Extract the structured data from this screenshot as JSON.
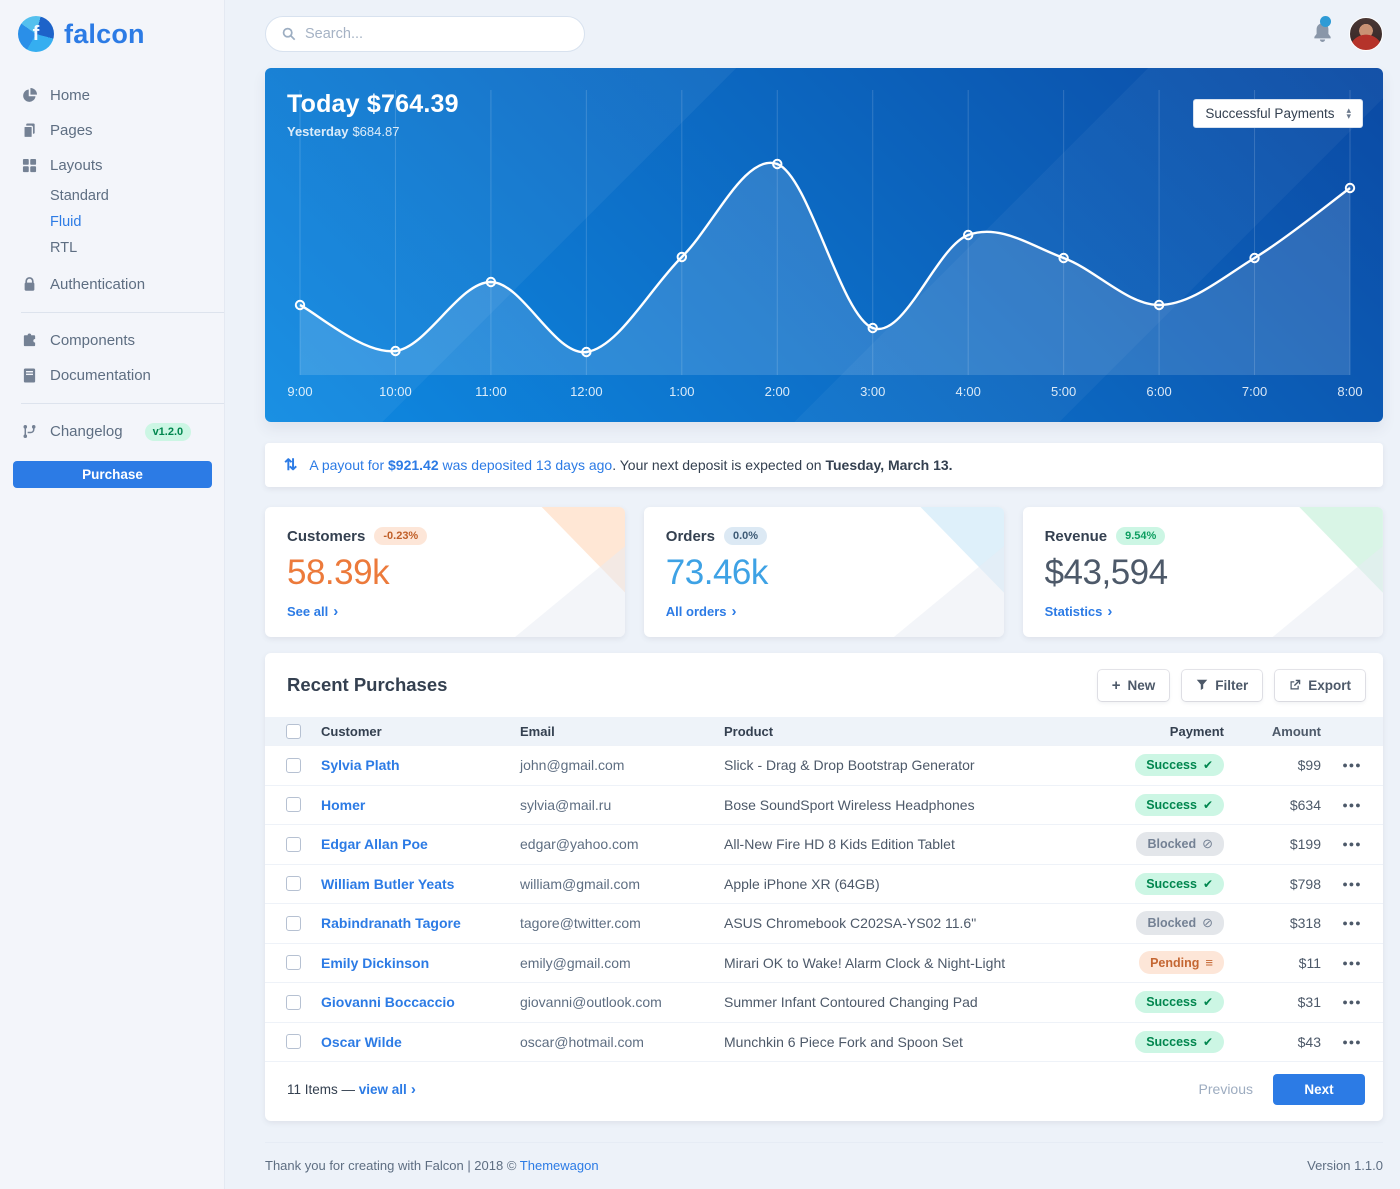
{
  "colors": {
    "page_bg": "#edf2f9",
    "accent": "#2c7be5",
    "chart_grad_start": "#0e8ae2",
    "chart_grad_end": "#0b4aa4",
    "success_bg": "#ccf6e4",
    "success_text": "#00864e",
    "blocked_bg": "#e3e6ea",
    "blocked_text": "#748194",
    "pending_bg": "#fde6d8",
    "pending_text": "#c46632",
    "customers": "#ec7a3b",
    "orders": "#3ea2e5",
    "revenue": "#4d5969"
  },
  "sidebar": {
    "logo_text": "falcon",
    "logo_letter": "f",
    "items": [
      {
        "label": "Home",
        "icon": "pie-chart-icon"
      },
      {
        "label": "Pages",
        "icon": "pages-icon"
      },
      {
        "label": "Layouts",
        "icon": "grid-icon"
      },
      {
        "label": "Standard"
      },
      {
        "label": "Fluid",
        "active": true
      },
      {
        "label": "RTL"
      },
      {
        "label": "Authentication",
        "icon": "lock-icon"
      },
      {
        "label": "Components",
        "icon": "puzzle-icon"
      },
      {
        "label": "Documentation",
        "icon": "book-icon"
      },
      {
        "label": "Changelog",
        "icon": "code-branch-icon",
        "badge": "v1.2.0"
      }
    ],
    "purchase_label": "Purchase"
  },
  "header": {
    "search_placeholder": "Search...",
    "bell_icon": "bell-icon",
    "avatar": "user-avatar"
  },
  "chart_card": {
    "title": "Today $764.39",
    "subtitle_label": "Yesterday",
    "subtitle_value": "$684.87",
    "dropdown_value": "Successful Payments"
  },
  "chart_data": {
    "type": "line",
    "title": "Successful Payments (Today $764.39 / Yesterday $684.87)",
    "x": [
      "9:00",
      "10:00",
      "11:00",
      "12:00",
      "1:00",
      "2:00",
      "3:00",
      "4:00",
      "5:00",
      "6:00",
      "7:00",
      "8:00"
    ],
    "series": [
      {
        "name": "Successful Payments",
        "values": [
          70,
          24,
          93,
          23,
          118,
          211,
          47,
          140,
          117,
          70,
          117,
          187
        ]
      }
    ],
    "ylim": [
      0,
      250
    ],
    "grid": "vertical",
    "legend": "none",
    "marker": "open-circle",
    "area_fill": true
  },
  "notification": {
    "icon": "exchange-arrows-icon",
    "link_prefix": "A payout for ",
    "link_amount": "$921.42",
    "link_suffix": " was deposited 13 days ago",
    "mid_text": ". Your next deposit is expected on ",
    "bold_text": "Tuesday, March 13."
  },
  "stats": [
    {
      "title": "Customers",
      "badge": "-0.23%",
      "value": "58.39k",
      "link": "See all",
      "theme": "warning"
    },
    {
      "title": "Orders",
      "badge": "0.0%",
      "value": "73.46k",
      "link": "All orders",
      "theme": "info"
    },
    {
      "title": "Revenue",
      "badge": "9.54%",
      "value": "$43,594",
      "link": "Statistics",
      "theme": "success"
    }
  ],
  "purchases": {
    "title": "Recent Purchases",
    "buttons": {
      "new": "New",
      "filter": "Filter",
      "export": "Export"
    },
    "columns": [
      "Customer",
      "Email",
      "Product",
      "Payment",
      "Amount"
    ],
    "rows": [
      {
        "customer": "Sylvia Plath",
        "email": "john@gmail.com",
        "product": "Slick - Drag & Drop Bootstrap Generator",
        "payment": "Success",
        "status": "success",
        "icon": "check-icon",
        "amount": "$99"
      },
      {
        "customer": "Homer",
        "email": "sylvia@mail.ru",
        "product": "Bose SoundSport Wireless Headphones",
        "payment": "Success",
        "status": "success",
        "icon": "check-icon",
        "amount": "$634"
      },
      {
        "customer": "Edgar Allan Poe",
        "email": "edgar@yahoo.com",
        "product": "All-New Fire HD 8 Kids Edition Tablet",
        "payment": "Blocked",
        "status": "blocked",
        "icon": "ban-icon",
        "amount": "$199"
      },
      {
        "customer": "William Butler Yeats",
        "email": "william@gmail.com",
        "product": "Apple iPhone XR (64GB)",
        "payment": "Success",
        "status": "success",
        "icon": "check-icon",
        "amount": "$798"
      },
      {
        "customer": "Rabindranath Tagore",
        "email": "tagore@twitter.com",
        "product": "ASUS Chromebook C202SA-YS02 11.6\"",
        "payment": "Blocked",
        "status": "blocked",
        "icon": "ban-icon",
        "amount": "$318"
      },
      {
        "customer": "Emily Dickinson",
        "email": "emily@gmail.com",
        "product": "Mirari OK to Wake! Alarm Clock & Night-Light",
        "payment": "Pending",
        "status": "pending",
        "icon": "stream-icon",
        "amount": "$11"
      },
      {
        "customer": "Giovanni Boccaccio",
        "email": "giovanni@outlook.com",
        "product": "Summer Infant Contoured Changing Pad",
        "payment": "Success",
        "status": "success",
        "icon": "check-icon",
        "amount": "$31"
      },
      {
        "customer": "Oscar Wilde",
        "email": "oscar@hotmail.com",
        "product": "Munchkin 6 Piece Fork and Spoon Set",
        "payment": "Success",
        "status": "success",
        "icon": "check-icon",
        "amount": "$43"
      }
    ],
    "footer": {
      "items_label": "11 Items — ",
      "view_all": "view all",
      "previous": "Previous",
      "next": "Next"
    }
  },
  "footer": {
    "thanks": "Thank you for creating with Falcon | 2018 © ",
    "brand": "Themewagon",
    "version": "Version 1.1.0"
  }
}
